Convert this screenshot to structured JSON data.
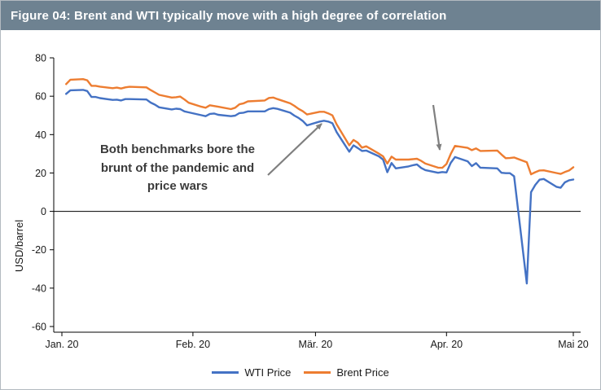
{
  "header": {
    "title": "Figure 04: Brent and WTI typically move with a high degree of correlation"
  },
  "annotation": {
    "text": "Both benchmarks bore the\nbrunt of the pandemic and\nprice wars",
    "arrow_color": "#7f7f7f",
    "arrows": [
      {
        "from": [
          328,
          178
        ],
        "to": [
          394,
          115
        ]
      },
      {
        "from": [
          531,
          92
        ],
        "to": [
          539,
          147
        ]
      }
    ]
  },
  "chart_data": {
    "type": "line",
    "title": "Figure 04: Brent and WTI typically move with a high degree of correlation",
    "xlabel": "",
    "ylabel": "USD/barrel",
    "ylim": [
      -60,
      80
    ],
    "yticks": [
      80,
      60,
      40,
      20,
      0,
      -20,
      -40,
      -60
    ],
    "grid": false,
    "legend_position": "bottom",
    "xticks": [
      {
        "label": "Jan. 20",
        "doy": 1
      },
      {
        "label": "Feb. 20",
        "doy": 32
      },
      {
        "label": "Mär. 20",
        "doy": 61
      },
      {
        "label": "Apr. 20",
        "doy": 92
      },
      {
        "label": "Mai 20",
        "doy": 122
      }
    ],
    "x_unit": "day-of-year 2020",
    "series": [
      {
        "name": "WTI Price",
        "color": "#4472C4",
        "points": [
          [
            2,
            61.2
          ],
          [
            3,
            63.1
          ],
          [
            6,
            63.3
          ],
          [
            7,
            62.7
          ],
          [
            8,
            59.6
          ],
          [
            9,
            59.6
          ],
          [
            10,
            59.0
          ],
          [
            13,
            58.1
          ],
          [
            14,
            58.2
          ],
          [
            15,
            57.8
          ],
          [
            16,
            58.5
          ],
          [
            17,
            58.5
          ],
          [
            21,
            58.3
          ],
          [
            22,
            56.7
          ],
          [
            23,
            55.6
          ],
          [
            24,
            54.2
          ],
          [
            27,
            53.1
          ],
          [
            28,
            53.5
          ],
          [
            29,
            53.3
          ],
          [
            30,
            52.1
          ],
          [
            31,
            51.6
          ],
          [
            34,
            50.1
          ],
          [
            35,
            49.6
          ],
          [
            36,
            50.8
          ],
          [
            37,
            51.0
          ],
          [
            38,
            50.3
          ],
          [
            41,
            49.6
          ],
          [
            42,
            49.9
          ],
          [
            43,
            51.2
          ],
          [
            44,
            51.4
          ],
          [
            45,
            52.1
          ],
          [
            49,
            52.1
          ],
          [
            50,
            53.3
          ],
          [
            51,
            53.8
          ],
          [
            52,
            53.4
          ],
          [
            55,
            51.4
          ],
          [
            56,
            49.9
          ],
          [
            57,
            48.7
          ],
          [
            58,
            47.1
          ],
          [
            59,
            44.8
          ],
          [
            62,
            46.8
          ],
          [
            63,
            47.2
          ],
          [
            64,
            46.8
          ],
          [
            65,
            45.9
          ],
          [
            66,
            41.3
          ],
          [
            69,
            31.1
          ],
          [
            70,
            34.4
          ],
          [
            71,
            33.0
          ],
          [
            72,
            31.5
          ],
          [
            73,
            31.7
          ],
          [
            76,
            28.7
          ],
          [
            77,
            27.0
          ],
          [
            78,
            20.4
          ],
          [
            79,
            25.2
          ],
          [
            80,
            22.4
          ],
          [
            83,
            23.4
          ],
          [
            84,
            24.0
          ],
          [
            85,
            24.5
          ],
          [
            86,
            22.6
          ],
          [
            87,
            21.5
          ],
          [
            90,
            20.1
          ],
          [
            91,
            20.5
          ],
          [
            92,
            20.3
          ],
          [
            93,
            25.3
          ],
          [
            94,
            28.3
          ],
          [
            97,
            26.1
          ],
          [
            98,
            23.6
          ],
          [
            99,
            25.1
          ],
          [
            100,
            22.8
          ],
          [
            104,
            22.4
          ],
          [
            105,
            20.1
          ],
          [
            106,
            19.9
          ],
          [
            107,
            19.9
          ],
          [
            108,
            18.3
          ],
          [
            111,
            -37.6
          ],
          [
            112,
            10.0
          ],
          [
            113,
            13.8
          ],
          [
            114,
            16.5
          ],
          [
            115,
            16.9
          ],
          [
            118,
            12.8
          ],
          [
            119,
            12.3
          ],
          [
            120,
            15.1
          ],
          [
            121,
            16.2
          ],
          [
            122,
            16.6
          ]
        ]
      },
      {
        "name": "Brent Price",
        "color": "#ED7D31",
        "points": [
          [
            2,
            66.3
          ],
          [
            3,
            68.6
          ],
          [
            6,
            68.9
          ],
          [
            7,
            68.3
          ],
          [
            8,
            65.4
          ],
          [
            9,
            65.4
          ],
          [
            10,
            65.0
          ],
          [
            13,
            64.2
          ],
          [
            14,
            64.5
          ],
          [
            15,
            64.0
          ],
          [
            16,
            64.6
          ],
          [
            17,
            64.9
          ],
          [
            21,
            64.6
          ],
          [
            22,
            63.2
          ],
          [
            23,
            62.0
          ],
          [
            24,
            60.7
          ],
          [
            27,
            59.3
          ],
          [
            28,
            59.5
          ],
          [
            29,
            59.8
          ],
          [
            30,
            58.3
          ],
          [
            31,
            56.6
          ],
          [
            34,
            54.5
          ],
          [
            35,
            54.0
          ],
          [
            36,
            55.3
          ],
          [
            37,
            54.9
          ],
          [
            38,
            54.5
          ],
          [
            41,
            53.3
          ],
          [
            42,
            54.0
          ],
          [
            43,
            55.8
          ],
          [
            44,
            56.3
          ],
          [
            45,
            57.3
          ],
          [
            49,
            57.8
          ],
          [
            50,
            59.1
          ],
          [
            51,
            59.3
          ],
          [
            52,
            58.5
          ],
          [
            55,
            56.3
          ],
          [
            56,
            55.0
          ],
          [
            57,
            53.4
          ],
          [
            58,
            52.2
          ],
          [
            59,
            50.5
          ],
          [
            62,
            51.9
          ],
          [
            63,
            51.9
          ],
          [
            64,
            51.1
          ],
          [
            65,
            50.0
          ],
          [
            66,
            45.3
          ],
          [
            69,
            34.4
          ],
          [
            70,
            37.2
          ],
          [
            71,
            35.8
          ],
          [
            72,
            33.2
          ],
          [
            73,
            33.9
          ],
          [
            76,
            30.1
          ],
          [
            77,
            28.7
          ],
          [
            78,
            24.9
          ],
          [
            79,
            28.5
          ],
          [
            80,
            27.0
          ],
          [
            83,
            27.0
          ],
          [
            84,
            27.2
          ],
          [
            85,
            27.4
          ],
          [
            86,
            26.3
          ],
          [
            87,
            24.9
          ],
          [
            90,
            22.8
          ],
          [
            91,
            22.7
          ],
          [
            92,
            24.7
          ],
          [
            93,
            29.9
          ],
          [
            94,
            34.1
          ],
          [
            97,
            33.1
          ],
          [
            98,
            31.9
          ],
          [
            99,
            32.8
          ],
          [
            100,
            31.5
          ],
          [
            104,
            31.7
          ],
          [
            105,
            29.6
          ],
          [
            106,
            27.7
          ],
          [
            107,
            27.8
          ],
          [
            108,
            28.1
          ],
          [
            111,
            25.6
          ],
          [
            112,
            19.3
          ],
          [
            113,
            20.4
          ],
          [
            114,
            21.3
          ],
          [
            115,
            21.4
          ],
          [
            118,
            20.0
          ],
          [
            119,
            19.5
          ],
          [
            120,
            20.5
          ],
          [
            121,
            21.3
          ],
          [
            122,
            23.0
          ]
        ]
      }
    ]
  }
}
